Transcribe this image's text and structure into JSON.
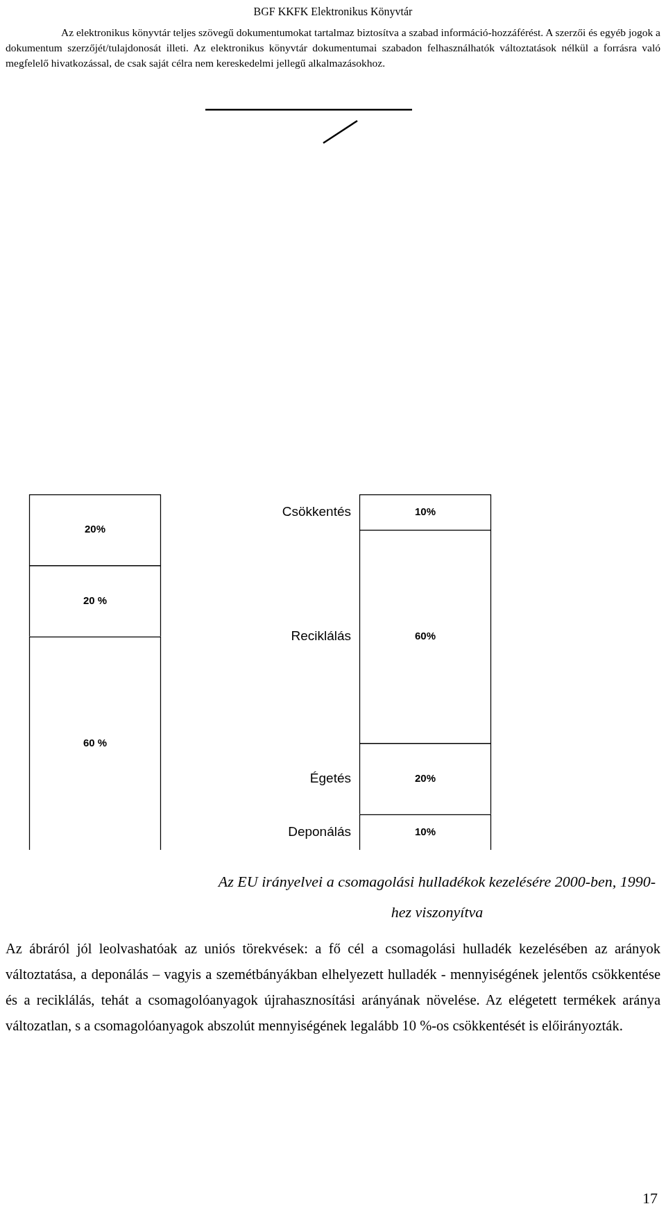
{
  "chart_data": {
    "type": "bar",
    "stacked": true,
    "title": "Az EU irányelvei a csomagolási hulladékok kezelésére 2000-ben, 1990-hez viszonyítva",
    "categories": [
      null,
      null
    ],
    "series": [
      {
        "name": "Deponálás",
        "color": "#ffffff",
        "values": [
          60,
          10
        ],
        "value_labels": [
          "60 %",
          "10%"
        ]
      },
      {
        "name": "Égetés",
        "color": "#ffffff",
        "values": [
          20,
          20
        ],
        "value_labels": [
          "20 %",
          "20%"
        ]
      },
      {
        "name": "Reciklálás",
        "color": "#ffffff",
        "values": [
          20,
          60
        ],
        "value_labels": [
          "20%",
          "60%"
        ]
      },
      {
        "name": "Csökkentés",
        "color": "#ffffff",
        "values": [
          null,
          10
        ],
        "value_labels": [
          null,
          "10%"
        ]
      }
    ],
    "annotations": [
      "BGF KKFK Elektronikus Könyvtár",
      "Az elektronikus könyvtár teljes szövegű dokumentumokat tartalmaz biztosítva a szabad információ-hozzáférést. A szerzői és egyéb jogok a dokumentum szerzőjét/tulajdonosát illeti. Az elektronikus könyvtár dokumentumai szabadon felhasználhatók változtatások nélkül a forrásra való megfelelő hivatkozással, de csak saját célra nem kereskedelmi jellegű alkalmazásokhoz.",
      "Az ábráról jól leolvashatóak az uniós törekvések: a fő cél a csomagolási hulladék kezelésében az arányok változtatása, a deponálás – vagyis a szemétbányákban elhelyezett hulladék - mennyiségének jelentős csökkentése és a reciklálás, tehát a csomagolóanyagok újrahasznosítási arányának növelése. Az elégetett termékek aránya változatlan, s a csomagolóanyagok abszolút mennyiségének legalább 10 %-os csökkentését is előirányozták.",
      "17"
    ]
  }
}
